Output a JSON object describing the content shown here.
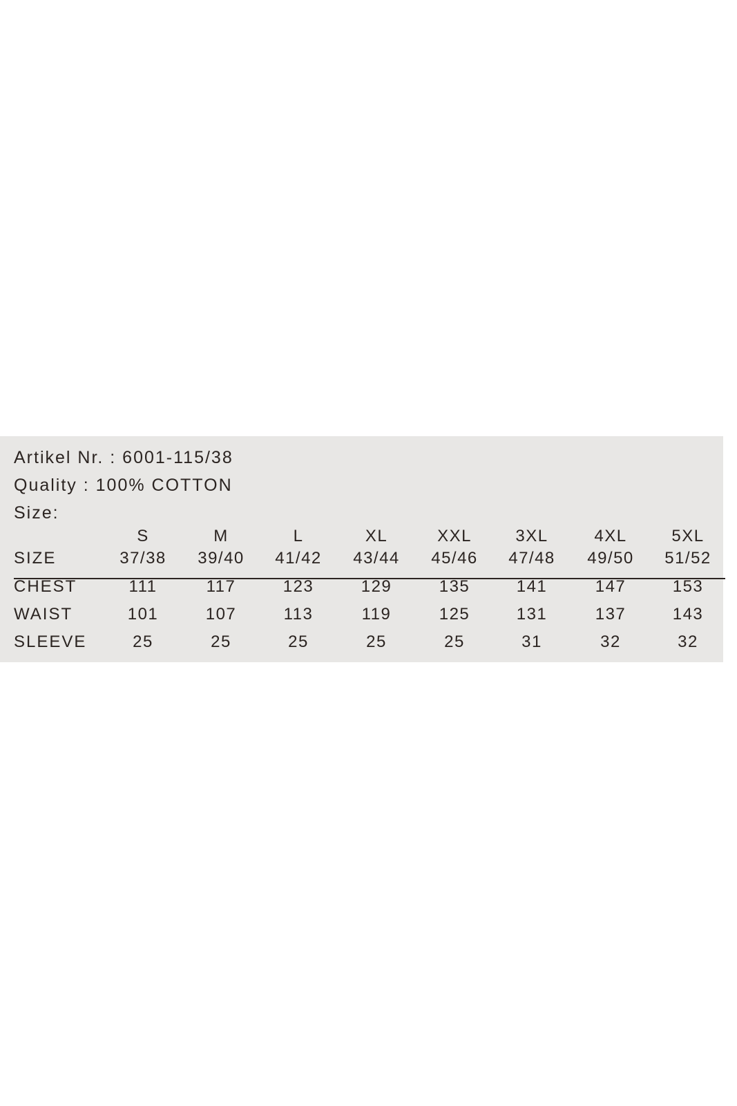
{
  "label": {
    "article_line": "Artikel Nr. : 6001-115/38",
    "quality_line": "Quality : 100% COTTON",
    "size_heading": "Size:"
  },
  "table": {
    "header_label": "SIZE",
    "columns": [
      {
        "size": "S",
        "eu": "37/38"
      },
      {
        "size": "M",
        "eu": "39/40"
      },
      {
        "size": "L",
        "eu": "41/42"
      },
      {
        "size": "XL",
        "eu": "43/44"
      },
      {
        "size": "XXL",
        "eu": "45/46"
      },
      {
        "size": "3XL",
        "eu": "47/48"
      },
      {
        "size": "4XL",
        "eu": "49/50"
      },
      {
        "size": "5XL",
        "eu": "51/52"
      }
    ],
    "rows": [
      {
        "label": "CHEST",
        "values": [
          "111",
          "117",
          "123",
          "129",
          "135",
          "141",
          "147",
          "153"
        ]
      },
      {
        "label": "WAIST",
        "values": [
          "101",
          "107",
          "113",
          "119",
          "125",
          "131",
          "137",
          "143"
        ]
      },
      {
        "label": "SLEEVE",
        "values": [
          "25",
          "25",
          "25",
          "25",
          "25",
          "31",
          "32",
          "32"
        ]
      }
    ]
  },
  "colors": {
    "panel": "#e8e7e5",
    "text": "#2b2421"
  }
}
